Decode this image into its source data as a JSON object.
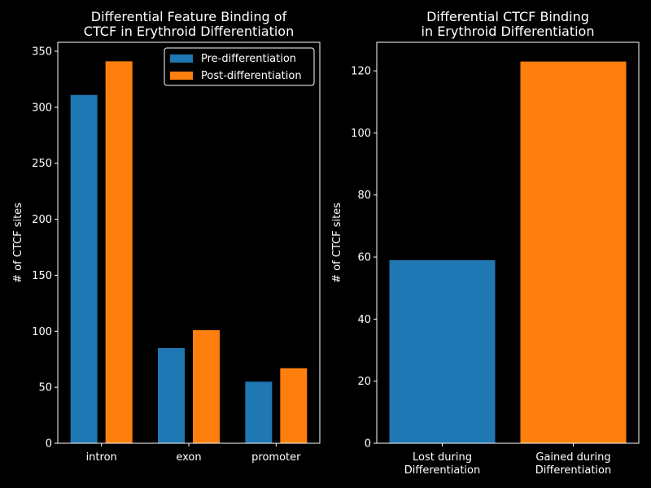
{
  "colors": {
    "pre": "#1f77b4",
    "post": "#ff7f0e",
    "background": "#000000",
    "axis": "#ffffff"
  },
  "chart_data": [
    {
      "type": "bar",
      "title": "Differential Feature Binding of\nCTCF in Erythroid Differentiation",
      "xlabel": "",
      "ylabel": "# of CTCF sites",
      "categories": [
        "intron",
        "exon",
        "promoter"
      ],
      "series": [
        {
          "name": "Pre-differentiation",
          "values": [
            311,
            85,
            55
          ],
          "color": "#1f77b4"
        },
        {
          "name": "Post-differentiation",
          "values": [
            341,
            101,
            67
          ],
          "color": "#ff7f0e"
        }
      ],
      "ylim": [
        0,
        358
      ],
      "yticks": [
        0,
        50,
        100,
        150,
        200,
        250,
        300,
        350
      ],
      "legend": "top-right",
      "grid": false
    },
    {
      "type": "bar",
      "title": "Differential CTCF Binding\nin Erythroid Differentiation",
      "xlabel": "",
      "ylabel": "# of CTCF sites",
      "categories": [
        "Lost during\nDifferentiation",
        "Gained during\nDifferentiation"
      ],
      "values": [
        59,
        123
      ],
      "colors": [
        "#1f77b4",
        "#ff7f0e"
      ],
      "ylim": [
        0,
        129.2
      ],
      "yticks": [
        0,
        20,
        40,
        60,
        80,
        100,
        120
      ],
      "grid": false
    }
  ]
}
